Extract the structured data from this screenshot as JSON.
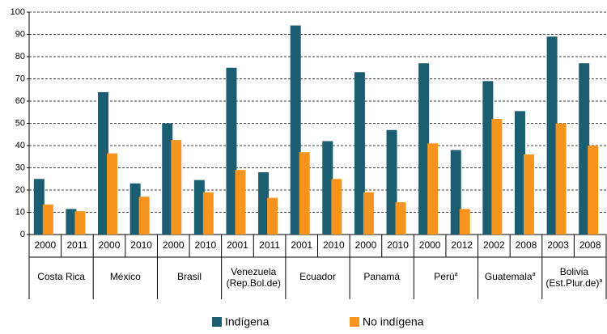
{
  "chart_data": {
    "type": "bar",
    "categories": [
      "2000",
      "2011",
      "2000",
      "2010",
      "2000",
      "2010",
      "2001",
      "2011",
      "2001",
      "2010",
      "2000",
      "2010",
      "2000",
      "2012",
      "2002",
      "2008",
      "2003",
      "2008"
    ],
    "groups": [
      {
        "label": [
          "Costa Rica"
        ]
      },
      {
        "label": [
          "México"
        ]
      },
      {
        "label": [
          "Brasil"
        ]
      },
      {
        "label": [
          "Venezuela",
          "(Rep.Bol.de)"
        ]
      },
      {
        "label": [
          "Ecuador"
        ]
      },
      {
        "label": [
          "Panamá"
        ]
      },
      {
        "label": [
          "Perú"
        ],
        "note": "a"
      },
      {
        "label": [
          "Guatemala"
        ],
        "note": "a"
      },
      {
        "label": [
          "Bolivia",
          "(Est.Plur.de)"
        ],
        "note": "a"
      }
    ],
    "series": [
      {
        "name": "Indígena",
        "color": "#1b5e72",
        "values": [
          25,
          11.5,
          64,
          23,
          50,
          24.5,
          75,
          28,
          94,
          42,
          73,
          47,
          77,
          38,
          69,
          55.5,
          89,
          77
        ]
      },
      {
        "name": "No indígena",
        "color": "#f7941d",
        "values": [
          13.5,
          10.5,
          36.5,
          17,
          42.5,
          19,
          29,
          16.5,
          37,
          25,
          19,
          14.5,
          41,
          11.5,
          52,
          36,
          50,
          40
        ]
      }
    ],
    "ylim": [
      0,
      100
    ],
    "yticks": [
      0,
      10,
      20,
      30,
      40,
      50,
      60,
      70,
      80,
      90,
      100
    ],
    "grid": true
  }
}
